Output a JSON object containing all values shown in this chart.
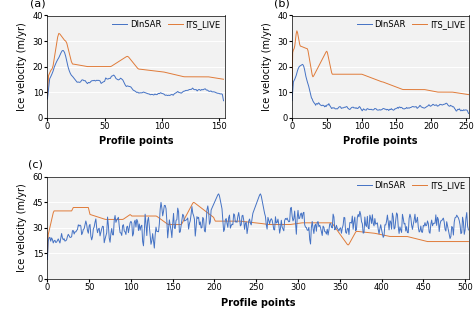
{
  "blue_color": "#4472C4",
  "orange_color": "#E07B39",
  "dinsar_label": "DInSAR",
  "its_label": "ITS_LIVE",
  "ylabel": "Ice velocity (m/yr)",
  "xlabel": "Profile points",
  "bg_color": "#F2F2F2",
  "a_xlim": [
    0,
    155
  ],
  "a_ylim": [
    0,
    40
  ],
  "a_xticks": [
    0,
    50,
    100,
    150
  ],
  "a_yticks": [
    0,
    10,
    20,
    30,
    40
  ],
  "b_xlim": [
    0,
    255
  ],
  "b_ylim": [
    0,
    40
  ],
  "b_xticks": [
    0,
    50,
    100,
    150,
    200,
    250
  ],
  "b_yticks": [
    0,
    10,
    20,
    30,
    40
  ],
  "c_xlim": [
    0,
    505
  ],
  "c_ylim": [
    0,
    60
  ],
  "c_xticks": [
    0,
    50,
    100,
    150,
    200,
    250,
    300,
    350,
    400,
    450,
    500
  ],
  "c_yticks": [
    0,
    15,
    30,
    45,
    60
  ],
  "line_width": 0.7,
  "font_size": 7,
  "legend_font_size": 6
}
